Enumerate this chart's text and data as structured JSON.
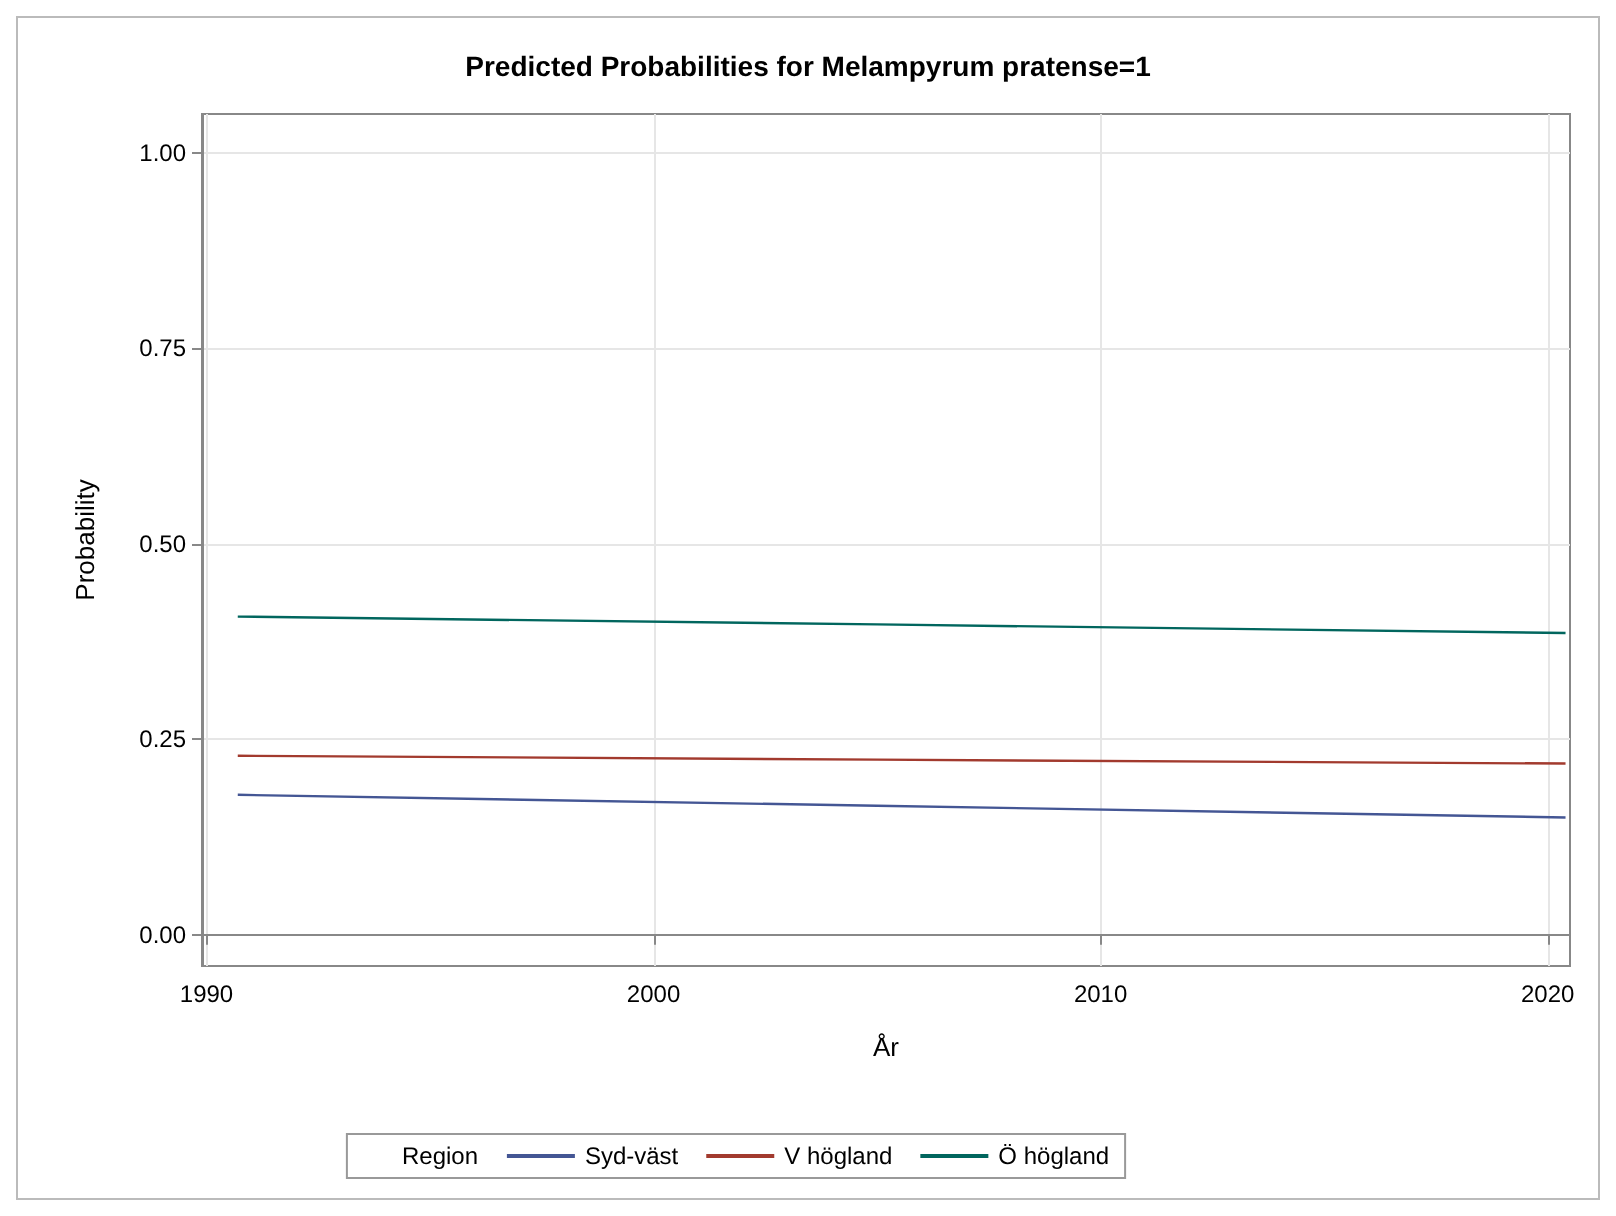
{
  "chart_data": {
    "type": "line",
    "title": "Predicted Probabilities for Melampyrum pratense=1",
    "xlabel": "År",
    "ylabel": "Probability",
    "legend_title": "Region",
    "legend": "bottom",
    "grid": true,
    "marker": "none",
    "line_style": "solid",
    "xlim": [
      1989.9,
      2020.5
    ],
    "xticks": [
      1990,
      2000,
      2010,
      2020
    ],
    "ylim": [
      -0.04,
      1.05
    ],
    "yticks": [
      {
        "value": 0,
        "label": "0.00"
      },
      {
        "value": 0.25,
        "label": "0.25"
      },
      {
        "value": 0.5,
        "label": "0.50"
      },
      {
        "value": 0.75,
        "label": "0.75"
      },
      {
        "value": 1,
        "label": "1.00"
      }
    ],
    "series": [
      {
        "name": "Syd-väst",
        "color": "#445694",
        "x": [
          1990.7,
          2005,
          2020.4
        ],
        "values": [
          0.179,
          0.165,
          0.15
        ]
      },
      {
        "name": "V högland",
        "color": "#a23a2e",
        "x": [
          1990.7,
          2005,
          2020.4
        ],
        "values": [
          0.229,
          0.224,
          0.219
        ]
      },
      {
        "name": "Ö högland",
        "color": "#01665e",
        "x": [
          1990.7,
          2005,
          2020.4
        ],
        "values": [
          0.407,
          0.397,
          0.386
        ]
      }
    ]
  }
}
